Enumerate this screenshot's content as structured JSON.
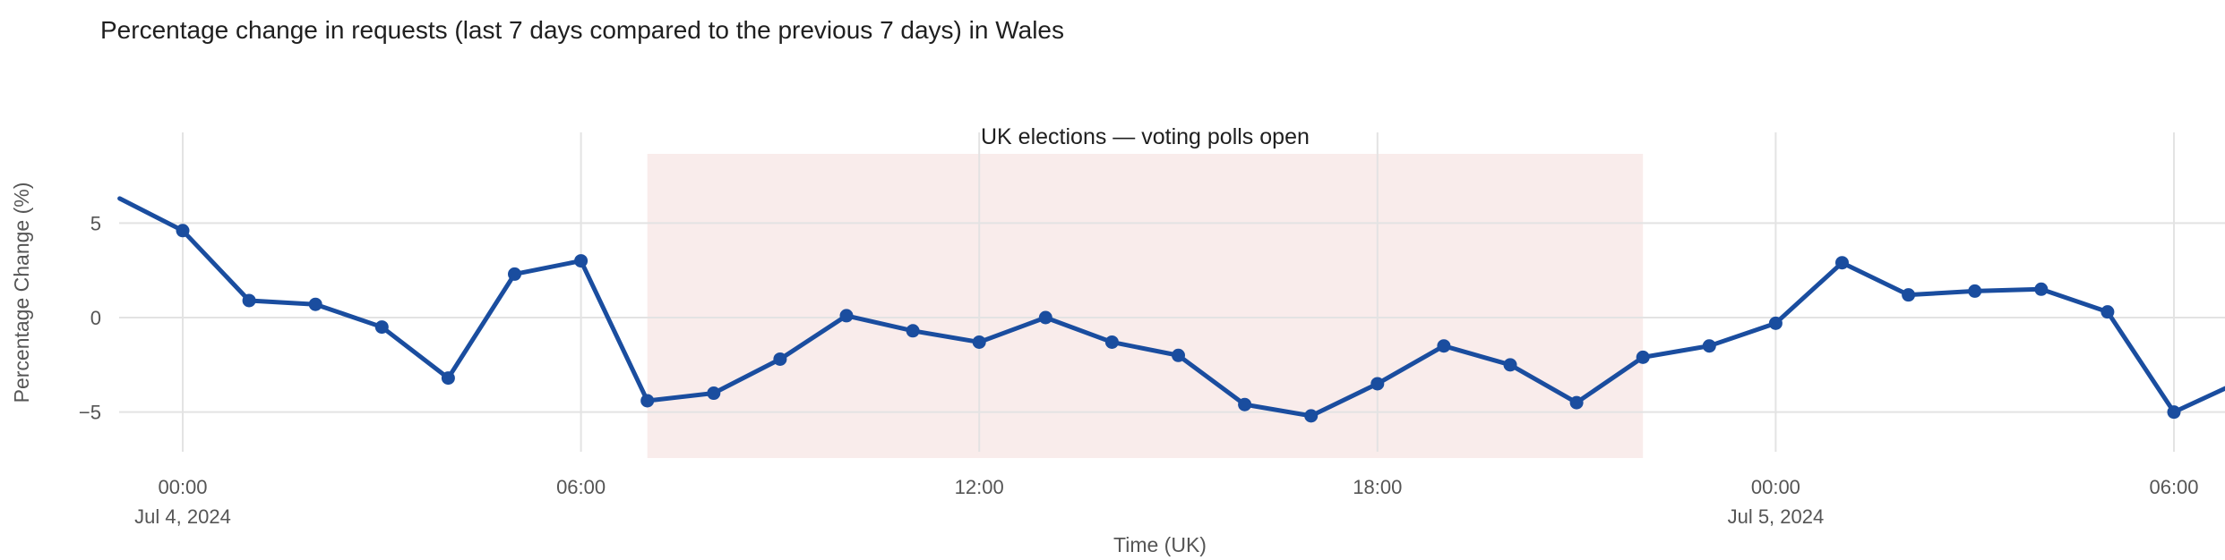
{
  "page": {
    "background": "#ffffff"
  },
  "chart_data": {
    "type": "line",
    "title": "Percentage change in requests (last 7 days compared to the previous 7 days) in Wales",
    "xlabel": "Time (UK)",
    "ylabel": "Percentage Change (%)",
    "grid": true,
    "legend": false,
    "ylim": [
      -7.1,
      9.8
    ],
    "x_ticks": [
      {
        "hour": 0,
        "label": "00:00",
        "sublabel": "Jul 4, 2024"
      },
      {
        "hour": 6,
        "label": "06:00",
        "sublabel": ""
      },
      {
        "hour": 12,
        "label": "12:00",
        "sublabel": ""
      },
      {
        "hour": 18,
        "label": "18:00",
        "sublabel": ""
      },
      {
        "hour": 24,
        "label": "00:00",
        "sublabel": "Jul 5, 2024"
      },
      {
        "hour": 30,
        "label": "06:00",
        "sublabel": ""
      }
    ],
    "y_ticks": [
      {
        "value": 5,
        "label": "5"
      },
      {
        "value": 0,
        "label": "0"
      },
      {
        "value": -5,
        "label": "−5"
      }
    ],
    "series": [
      {
        "name": "Percentage change in requests",
        "hours": [
          0,
          1,
          2,
          3,
          4,
          5,
          6,
          7,
          8,
          9,
          10,
          11,
          12,
          13,
          14,
          15,
          16,
          17,
          18,
          19,
          20,
          21,
          22,
          23,
          24,
          25,
          26,
          27,
          28,
          29,
          30
        ],
        "values": [
          4.6,
          0.9,
          0.7,
          -0.5,
          -3.2,
          2.3,
          3.0,
          -4.4,
          -4.0,
          -2.2,
          0.1,
          -0.7,
          -1.3,
          0.0,
          -1.3,
          -2.0,
          -4.6,
          -5.2,
          -3.5,
          -1.5,
          -2.5,
          -4.5,
          -2.1,
          -1.5,
          -0.3,
          2.9,
          1.2,
          1.4,
          1.5,
          0.3,
          -5.0
        ]
      }
    ],
    "clipped_edges": {
      "start": {
        "hour": -0.95,
        "value": 6.3
      },
      "end": {
        "hour": 30.8,
        "value": -3.7
      }
    },
    "annotation": {
      "text": "UK elections — voting polls open",
      "band_start_hour": 7,
      "band_end_hour": 22
    },
    "colors": {
      "line": "#1a4d9f",
      "band": "#f9eceb",
      "grid": "#e3e3e3",
      "tick_text": "#555555",
      "title_text": "#1f1f1f"
    }
  }
}
